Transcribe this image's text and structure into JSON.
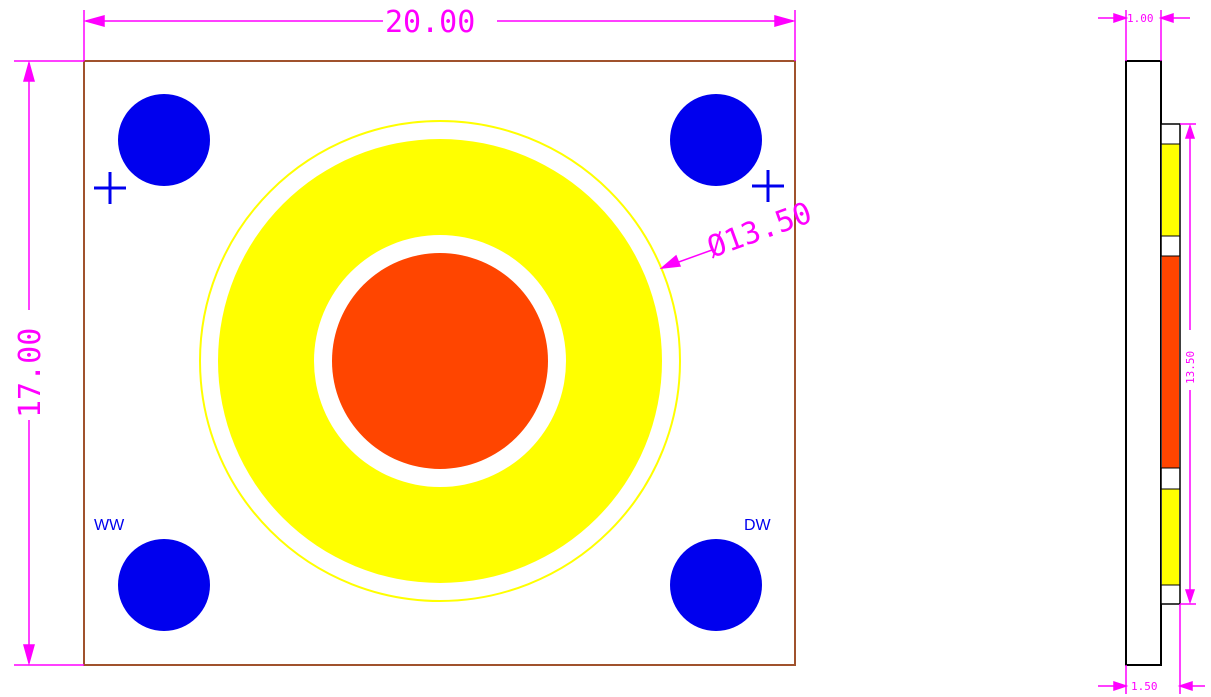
{
  "dimensions": {
    "width_label": "20.00",
    "height_label": "17.00",
    "diameter_label": "Ø13.50",
    "side_thickness_label": "1.00",
    "side_height_label": "13.50",
    "side_bottom_label": "1.50"
  },
  "labels": {
    "ww": "WW",
    "dw": "DW"
  },
  "colors": {
    "dimension": "#ff00ff",
    "board_outline": "#a0522d",
    "pads": "#0000ee",
    "phosphor_ring": "#ffff00",
    "phosphor_core": "#ff4500",
    "outline": "#000000"
  },
  "icons": {
    "plus_marker": "plus-icon"
  }
}
